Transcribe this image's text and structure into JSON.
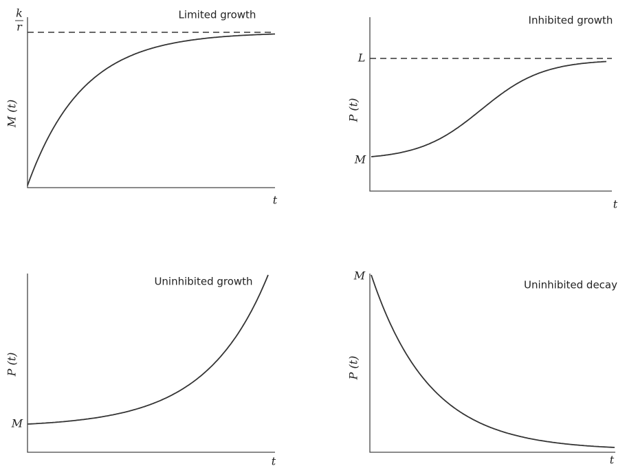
{
  "panels": [
    {
      "title": "Limited growth",
      "y_label": "M (t)",
      "x_label": "t",
      "level_numerator": "k",
      "level_denominator": "r"
    },
    {
      "title": "Inhibited growth",
      "y_label": "P (t)",
      "x_label": "t",
      "upper_level": "L",
      "start_level": "M"
    },
    {
      "title": "Uninhibited growth",
      "y_label": "P (t)",
      "x_label": "t",
      "start_level": "M"
    },
    {
      "title": "Uninhibited decay",
      "y_label": "P (t)",
      "x_label": "t",
      "start_level": "M"
    }
  ]
}
